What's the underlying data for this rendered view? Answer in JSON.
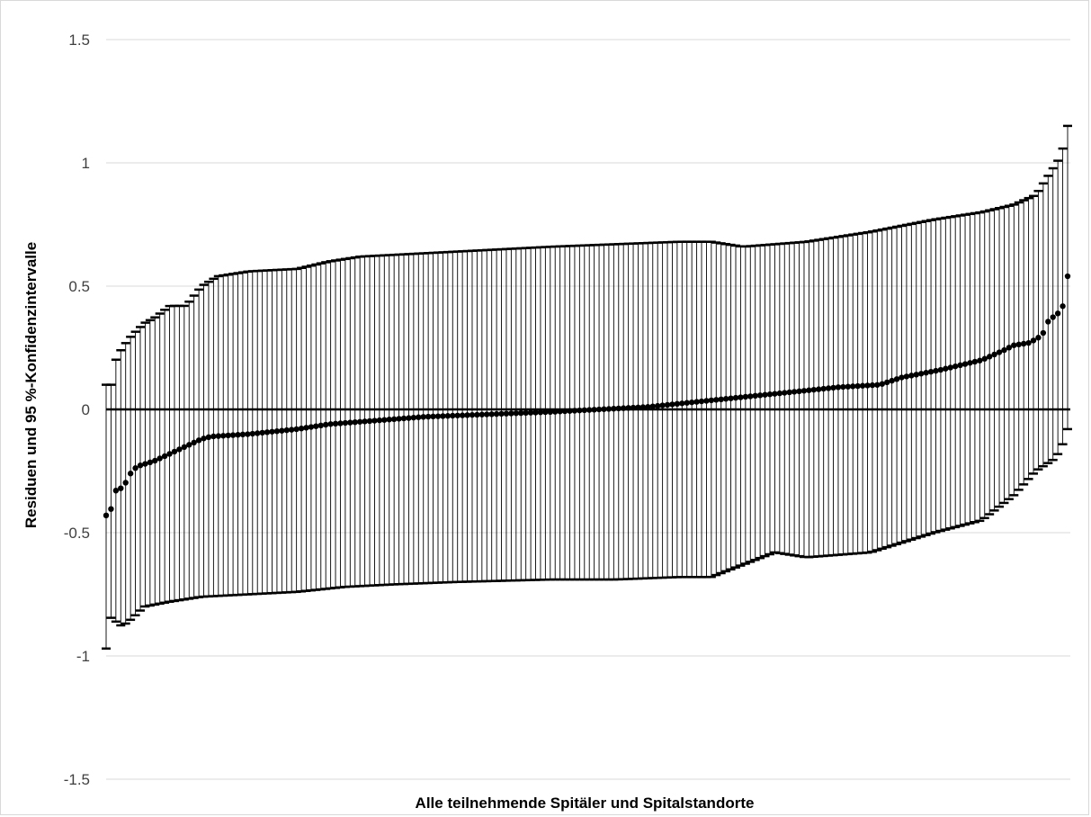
{
  "chart_data": {
    "type": "scatter",
    "variant": "sorted residuals with 95% confidence interval error bars",
    "title": "",
    "xlabel": "Alle teilnehmende Spitäler und Spitalstandorte",
    "ylabel": "Residuen und 95 %-Konfidenzintervalle",
    "ylim": [
      -1.5,
      1.5
    ],
    "yticks": [
      1.5,
      1,
      0.5,
      0,
      -0.5,
      -1,
      -1.5
    ],
    "ytick_labels": [
      "1.5",
      "1",
      "0.5",
      "0",
      "-0.5",
      "-1",
      "-1.5"
    ],
    "grid": "horizontal",
    "n_points": 198,
    "residual_profile": [
      [
        0,
        -0.43
      ],
      [
        1,
        -0.42
      ],
      [
        2,
        -0.39
      ],
      [
        3,
        -0.33
      ],
      [
        4,
        -0.32
      ],
      [
        5,
        -0.32
      ],
      [
        7,
        -0.28
      ],
      [
        8,
        -0.25
      ],
      [
        10,
        -0.23
      ],
      [
        15,
        -0.21
      ],
      [
        20,
        -0.18
      ],
      [
        25,
        -0.15
      ],
      [
        30,
        -0.12
      ],
      [
        33,
        -0.11
      ],
      [
        45,
        -0.1
      ],
      [
        60,
        -0.08
      ],
      [
        70,
        -0.06
      ],
      [
        80,
        -0.05
      ],
      [
        100,
        -0.03
      ],
      [
        120,
        -0.02
      ],
      [
        140,
        -0.01
      ],
      [
        155,
        0.0
      ],
      [
        170,
        0.01
      ],
      [
        185,
        0.03
      ],
      [
        200,
        0.05
      ],
      [
        215,
        0.07
      ],
      [
        230,
        0.09
      ],
      [
        243,
        0.1
      ],
      [
        250,
        0.13
      ],
      [
        262,
        0.16
      ],
      [
        275,
        0.2
      ],
      [
        282,
        0.24
      ],
      [
        285,
        0.26
      ],
      [
        290,
        0.27
      ],
      [
        294,
        0.3
      ],
      [
        296,
        0.36
      ],
      [
        298,
        0.38
      ],
      [
        300,
        0.4
      ],
      [
        301,
        0.44
      ],
      [
        302,
        0.54
      ]
    ],
    "upper_bound_profile": [
      [
        0,
        0.1
      ],
      [
        2,
        0.1
      ],
      [
        3,
        0.2
      ],
      [
        5,
        0.25
      ],
      [
        8,
        0.3
      ],
      [
        12,
        0.35
      ],
      [
        15,
        0.37
      ],
      [
        20,
        0.42
      ],
      [
        25,
        0.42
      ],
      [
        30,
        0.5
      ],
      [
        35,
        0.54
      ],
      [
        45,
        0.56
      ],
      [
        60,
        0.57
      ],
      [
        70,
        0.6
      ],
      [
        80,
        0.62
      ],
      [
        110,
        0.64
      ],
      [
        140,
        0.66
      ],
      [
        160,
        0.67
      ],
      [
        180,
        0.68
      ],
      [
        190,
        0.68
      ],
      [
        200,
        0.66
      ],
      [
        220,
        0.68
      ],
      [
        240,
        0.72
      ],
      [
        260,
        0.77
      ],
      [
        275,
        0.8
      ],
      [
        285,
        0.83
      ],
      [
        292,
        0.87
      ],
      [
        300,
        1.03
      ],
      [
        302,
        1.15
      ]
    ],
    "lower_bound_profile": [
      [
        0,
        -0.97
      ],
      [
        1,
        -0.84
      ],
      [
        5,
        -0.88
      ],
      [
        8,
        -0.85
      ],
      [
        12,
        -0.8
      ],
      [
        20,
        -0.78
      ],
      [
        30,
        -0.76
      ],
      [
        45,
        -0.75
      ],
      [
        60,
        -0.74
      ],
      [
        75,
        -0.72
      ],
      [
        90,
        -0.71
      ],
      [
        110,
        -0.7
      ],
      [
        140,
        -0.69
      ],
      [
        160,
        -0.69
      ],
      [
        180,
        -0.68
      ],
      [
        190,
        -0.68
      ],
      [
        200,
        -0.63
      ],
      [
        210,
        -0.58
      ],
      [
        220,
        -0.6
      ],
      [
        240,
        -0.58
      ],
      [
        260,
        -0.5
      ],
      [
        275,
        -0.45
      ],
      [
        285,
        -0.35
      ],
      [
        292,
        -0.25
      ],
      [
        298,
        -0.2
      ],
      [
        300,
        -0.16
      ],
      [
        302,
        -0.08
      ]
    ]
  }
}
